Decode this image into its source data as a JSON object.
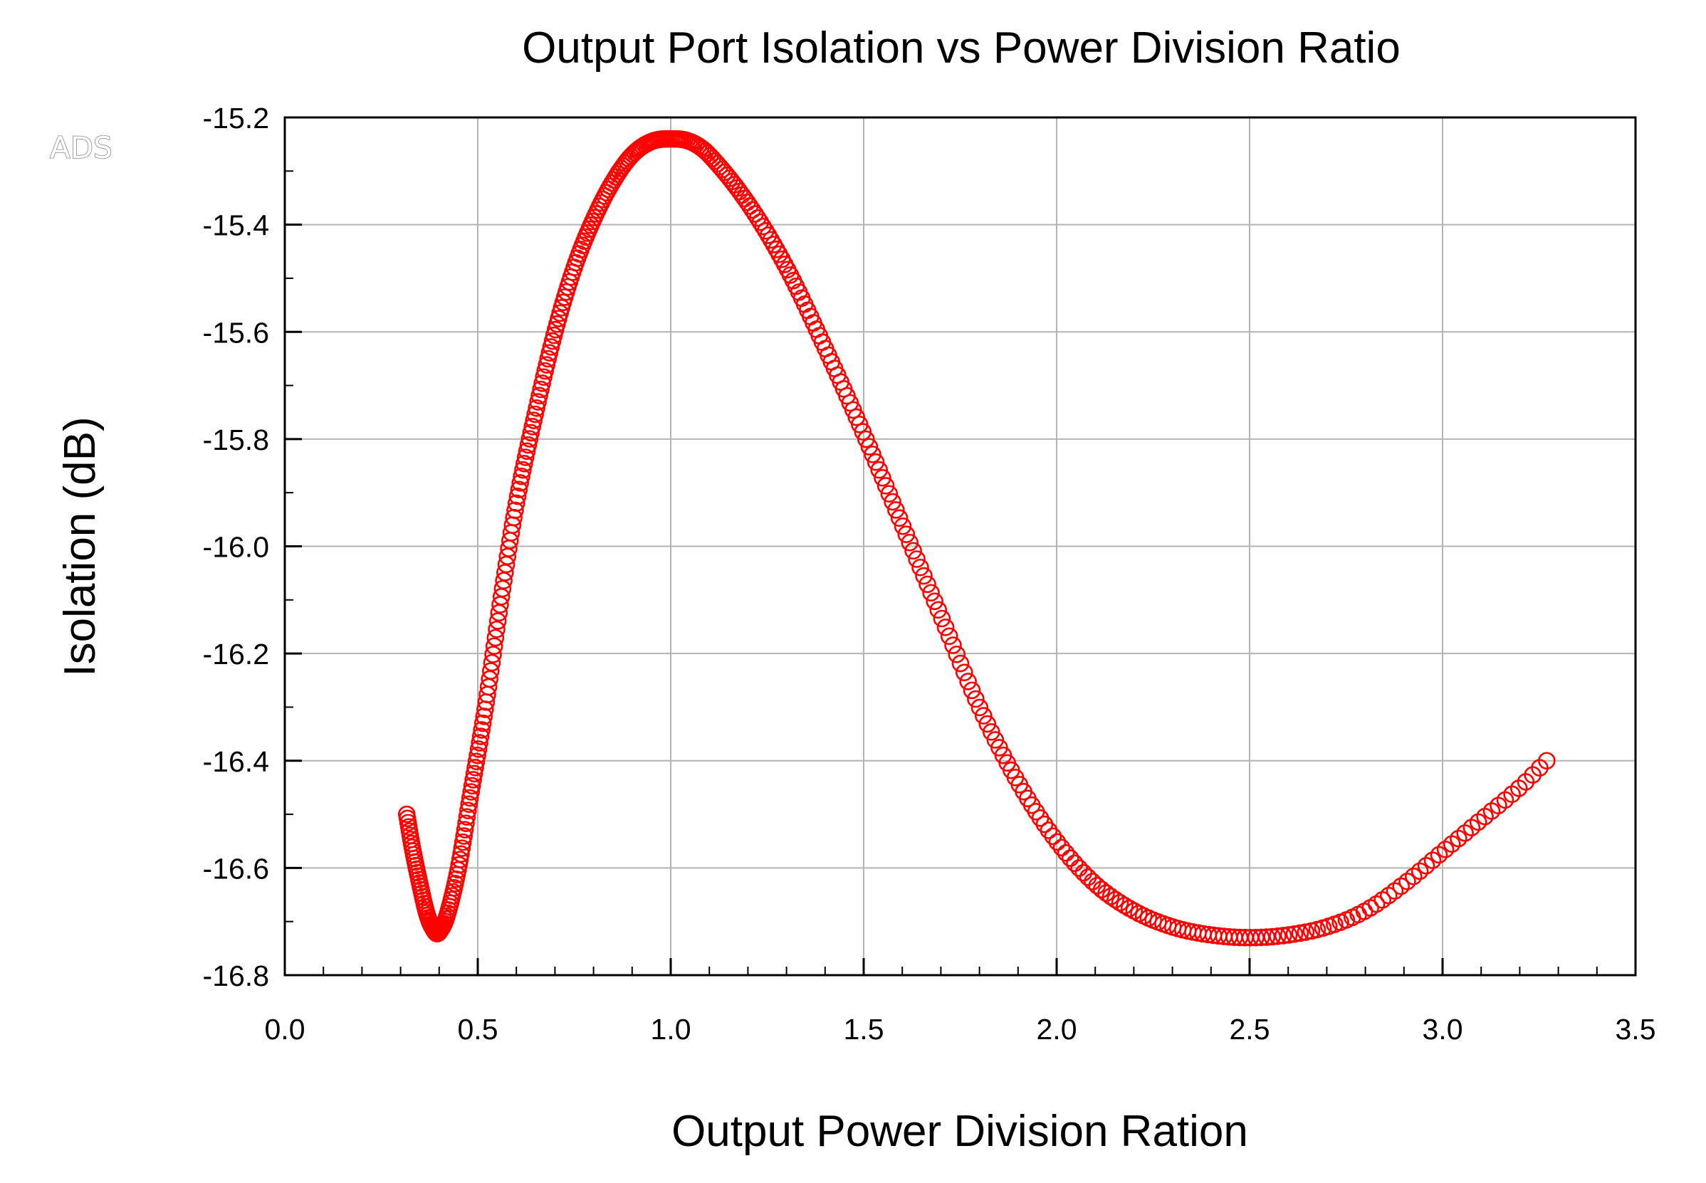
{
  "watermark": "ADS",
  "chart_data": {
    "type": "scatter",
    "title": "Output Port Isolation vs Power Division Ratio",
    "xlabel": "Output Power Division Ration",
    "ylabel": "Isolation (dB)",
    "xlim": [
      0.0,
      3.5
    ],
    "ylim": [
      -16.8,
      -15.2
    ],
    "x_ticks": [
      "0.0",
      "0.5",
      "1.0",
      "1.5",
      "2.0",
      "2.5",
      "3.0",
      "3.5"
    ],
    "y_ticks": [
      "-15.2",
      "-15.4",
      "-15.6",
      "-15.8",
      "-16.0",
      "-16.2",
      "-16.4",
      "-16.6",
      "-16.8"
    ],
    "grid": true,
    "legend": "none",
    "series": [
      {
        "color": "#ff0000",
        "marker": "circle",
        "x_range": [
          0.316,
          3.27
        ],
        "points": [
          [
            0.316,
            -16.5
          ],
          [
            0.33,
            -16.56
          ],
          [
            0.35,
            -16.63
          ],
          [
            0.37,
            -16.69
          ],
          [
            0.39,
            -16.72
          ],
          [
            0.4,
            -16.72
          ],
          [
            0.42,
            -16.69
          ],
          [
            0.45,
            -16.6
          ],
          [
            0.48,
            -16.47
          ],
          [
            0.52,
            -16.3
          ],
          [
            0.56,
            -16.1
          ],
          [
            0.6,
            -15.92
          ],
          [
            0.65,
            -15.75
          ],
          [
            0.7,
            -15.6
          ],
          [
            0.75,
            -15.48
          ],
          [
            0.8,
            -15.39
          ],
          [
            0.85,
            -15.32
          ],
          [
            0.9,
            -15.27
          ],
          [
            0.95,
            -15.245
          ],
          [
            1.0,
            -15.24
          ],
          [
            1.05,
            -15.245
          ],
          [
            1.1,
            -15.27
          ],
          [
            1.2,
            -15.36
          ],
          [
            1.3,
            -15.48
          ],
          [
            1.4,
            -15.63
          ],
          [
            1.5,
            -15.79
          ],
          [
            1.6,
            -15.96
          ],
          [
            1.7,
            -16.13
          ],
          [
            1.8,
            -16.3
          ],
          [
            1.9,
            -16.44
          ],
          [
            2.0,
            -16.55
          ],
          [
            2.1,
            -16.63
          ],
          [
            2.2,
            -16.68
          ],
          [
            2.3,
            -16.71
          ],
          [
            2.4,
            -16.725
          ],
          [
            2.5,
            -16.73
          ],
          [
            2.6,
            -16.725
          ],
          [
            2.7,
            -16.71
          ],
          [
            2.8,
            -16.68
          ],
          [
            2.9,
            -16.63
          ],
          [
            3.0,
            -16.57
          ],
          [
            3.1,
            -16.51
          ],
          [
            3.2,
            -16.45
          ],
          [
            3.27,
            -16.4
          ]
        ]
      }
    ]
  }
}
